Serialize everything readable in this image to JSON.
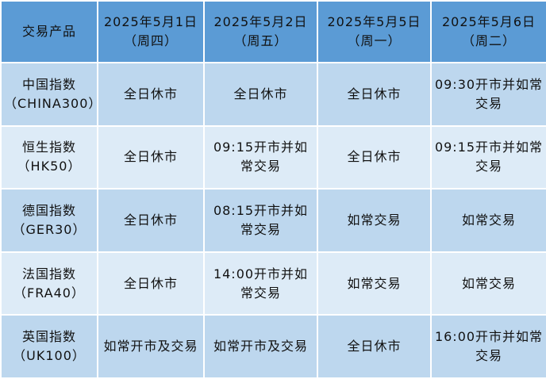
{
  "header": {
    "product": "交易产品",
    "dates": [
      {
        "date": "2025年5月1日",
        "weekday": "（周四）"
      },
      {
        "date": "2025年5月2日",
        "weekday": "（周五）"
      },
      {
        "date": "2025年5月5日",
        "weekday": "（周一）"
      },
      {
        "date": "2025年5月6日",
        "weekday": "（周二）"
      }
    ]
  },
  "rows": [
    {
      "name": "中国指数",
      "code": "（CHINA300）",
      "cells": [
        "全日休市",
        "全日休市",
        "全日休市",
        "09:30开市并如常交易"
      ]
    },
    {
      "name": "恒生指数",
      "code": "（HK50）",
      "cells": [
        "全日休市",
        "09:15开市并如常交易",
        "全日休市",
        "09:15开市并如常交易"
      ]
    },
    {
      "name": "德国指数",
      "code": "（GER30）",
      "cells": [
        "全日休市",
        "08:15开市并如常交易",
        "如常交易",
        "如常交易"
      ]
    },
    {
      "name": "法国指数",
      "code": "（FRA40）",
      "cells": [
        "全日休市",
        "14:00开市并如常交易",
        "如常交易",
        "如常交易"
      ]
    },
    {
      "name": "英国指数",
      "code": "（UK100）",
      "cells": [
        "如常开市及交易",
        "如常开市及交易",
        "全日休市",
        "16:00开市并如常交易"
      ]
    }
  ],
  "colors": {
    "header": "#5b9bd5",
    "row_odd": "#bdd7ee",
    "row_even": "#ddebf7"
  }
}
